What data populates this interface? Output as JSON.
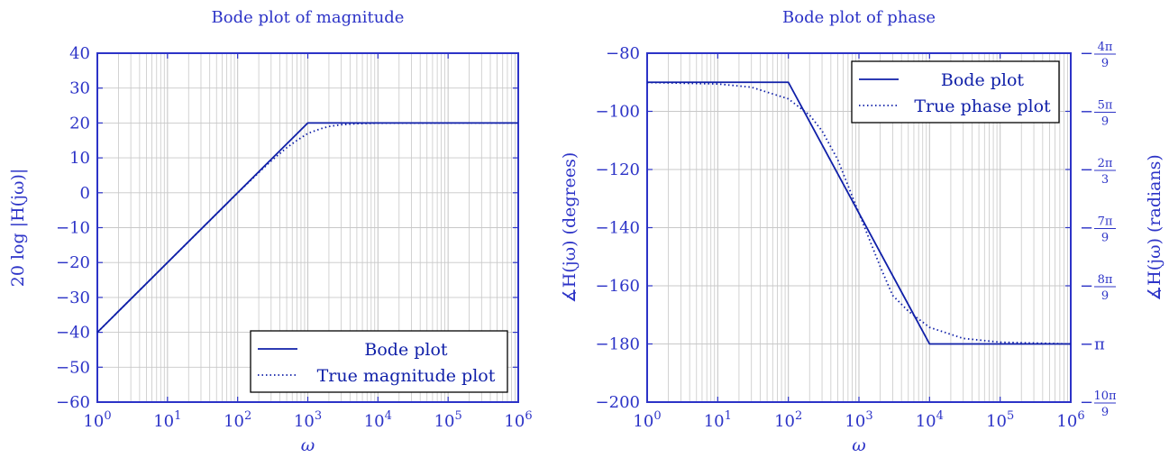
{
  "colors": {
    "axis": "#2c33c7",
    "text": "#2c33c7",
    "series": "#0f1fa8",
    "grid": "#c8c8c8",
    "legend_border": "#000000"
  },
  "chart_data": [
    {
      "type": "line",
      "title": "Bode plot of magnitude",
      "xlabel": "ω",
      "ylabel": "20 log |H(jω)|",
      "xscale": "log",
      "xlim": [
        1,
        1000000
      ],
      "ylim": [
        -60,
        40
      ],
      "x_ticks": [
        {
          "value": 1,
          "base": "10",
          "exp": "0"
        },
        {
          "value": 10,
          "base": "10",
          "exp": "1"
        },
        {
          "value": 100,
          "base": "10",
          "exp": "2"
        },
        {
          "value": 1000,
          "base": "10",
          "exp": "3"
        },
        {
          "value": 10000,
          "base": "10",
          "exp": "4"
        },
        {
          "value": 100000,
          "base": "10",
          "exp": "5"
        },
        {
          "value": 1000000,
          "base": "10",
          "exp": "6"
        }
      ],
      "y_ticks": [
        {
          "value": 40,
          "label": "40"
        },
        {
          "value": 30,
          "label": "30"
        },
        {
          "value": 20,
          "label": "20"
        },
        {
          "value": 10,
          "label": "10"
        },
        {
          "value": 0,
          "label": "0"
        },
        {
          "value": -10,
          "label": "−10"
        },
        {
          "value": -20,
          "label": "−20"
        },
        {
          "value": -30,
          "label": "−30"
        },
        {
          "value": -40,
          "label": "−40"
        },
        {
          "value": -50,
          "label": "−50"
        },
        {
          "value": -60,
          "label": "−60"
        }
      ],
      "grid": true,
      "legend_position": "bottom-right",
      "series": [
        {
          "name": "Bode plot",
          "style": "solid",
          "x": [
            1,
            1000,
            1000000
          ],
          "y": [
            -40,
            20,
            20
          ]
        },
        {
          "name": "True magnitude plot",
          "style": "dotted",
          "x": [
            1,
            10,
            100,
            200,
            300,
            500,
            700,
            1000,
            1500,
            2000,
            3000,
            5000,
            10000,
            100000,
            1000000
          ],
          "y": [
            -40,
            -20,
            -0.04,
            5.8,
            9.1,
            12.9,
            15.0,
            17.0,
            18.3,
            19.0,
            19.5,
            19.8,
            19.96,
            20,
            20
          ]
        }
      ]
    },
    {
      "type": "line",
      "title": "Bode plot of phase",
      "xlabel": "ω",
      "ylabel": "∡H(jω) (degrees)",
      "ylabel_right": "∡H(jω) (radians)",
      "xscale": "log",
      "xlim": [
        1,
        1000000
      ],
      "ylim": [
        -200,
        -80
      ],
      "x_ticks": [
        {
          "value": 1,
          "base": "10",
          "exp": "0"
        },
        {
          "value": 10,
          "base": "10",
          "exp": "1"
        },
        {
          "value": 100,
          "base": "10",
          "exp": "2"
        },
        {
          "value": 1000,
          "base": "10",
          "exp": "3"
        },
        {
          "value": 10000,
          "base": "10",
          "exp": "4"
        },
        {
          "value": 100000,
          "base": "10",
          "exp": "5"
        },
        {
          "value": 1000000,
          "base": "10",
          "exp": "6"
        }
      ],
      "y_ticks": [
        {
          "value": -80,
          "label": "−80"
        },
        {
          "value": -100,
          "label": "−100"
        },
        {
          "value": -120,
          "label": "−120"
        },
        {
          "value": -140,
          "label": "−140"
        },
        {
          "value": -160,
          "label": "−160"
        },
        {
          "value": -180,
          "label": "−180"
        },
        {
          "value": -200,
          "label": "−200"
        }
      ],
      "y_ticks_right": [
        {
          "value": -80,
          "num": "4π",
          "den": "9"
        },
        {
          "value": -100,
          "num": "5π",
          "den": "9"
        },
        {
          "value": -120,
          "num": "2π",
          "den": "3"
        },
        {
          "value": -140,
          "num": "7π",
          "den": "9"
        },
        {
          "value": -160,
          "num": "8π",
          "den": "9"
        },
        {
          "value": -180,
          "label": "π"
        },
        {
          "value": -200,
          "num": "10π",
          "den": "9"
        }
      ],
      "grid": true,
      "legend_position": "top-right",
      "series": [
        {
          "name": "Bode plot",
          "style": "solid",
          "x": [
            1,
            100,
            10000,
            1000000
          ],
          "y": [
            -90,
            -90,
            -180,
            -180
          ]
        },
        {
          "name": "True phase plot",
          "style": "dotted",
          "x": [
            1,
            10,
            30,
            100,
            200,
            300,
            500,
            1000,
            2000,
            3000,
            5000,
            10000,
            30000,
            100000,
            1000000
          ],
          "y": [
            -90.06,
            -90.57,
            -91.7,
            -95.7,
            -101.3,
            -106.7,
            -116.6,
            -135,
            -153.4,
            -163.3,
            -168.7,
            -174.3,
            -178.1,
            -179.4,
            -180
          ]
        }
      ]
    }
  ]
}
